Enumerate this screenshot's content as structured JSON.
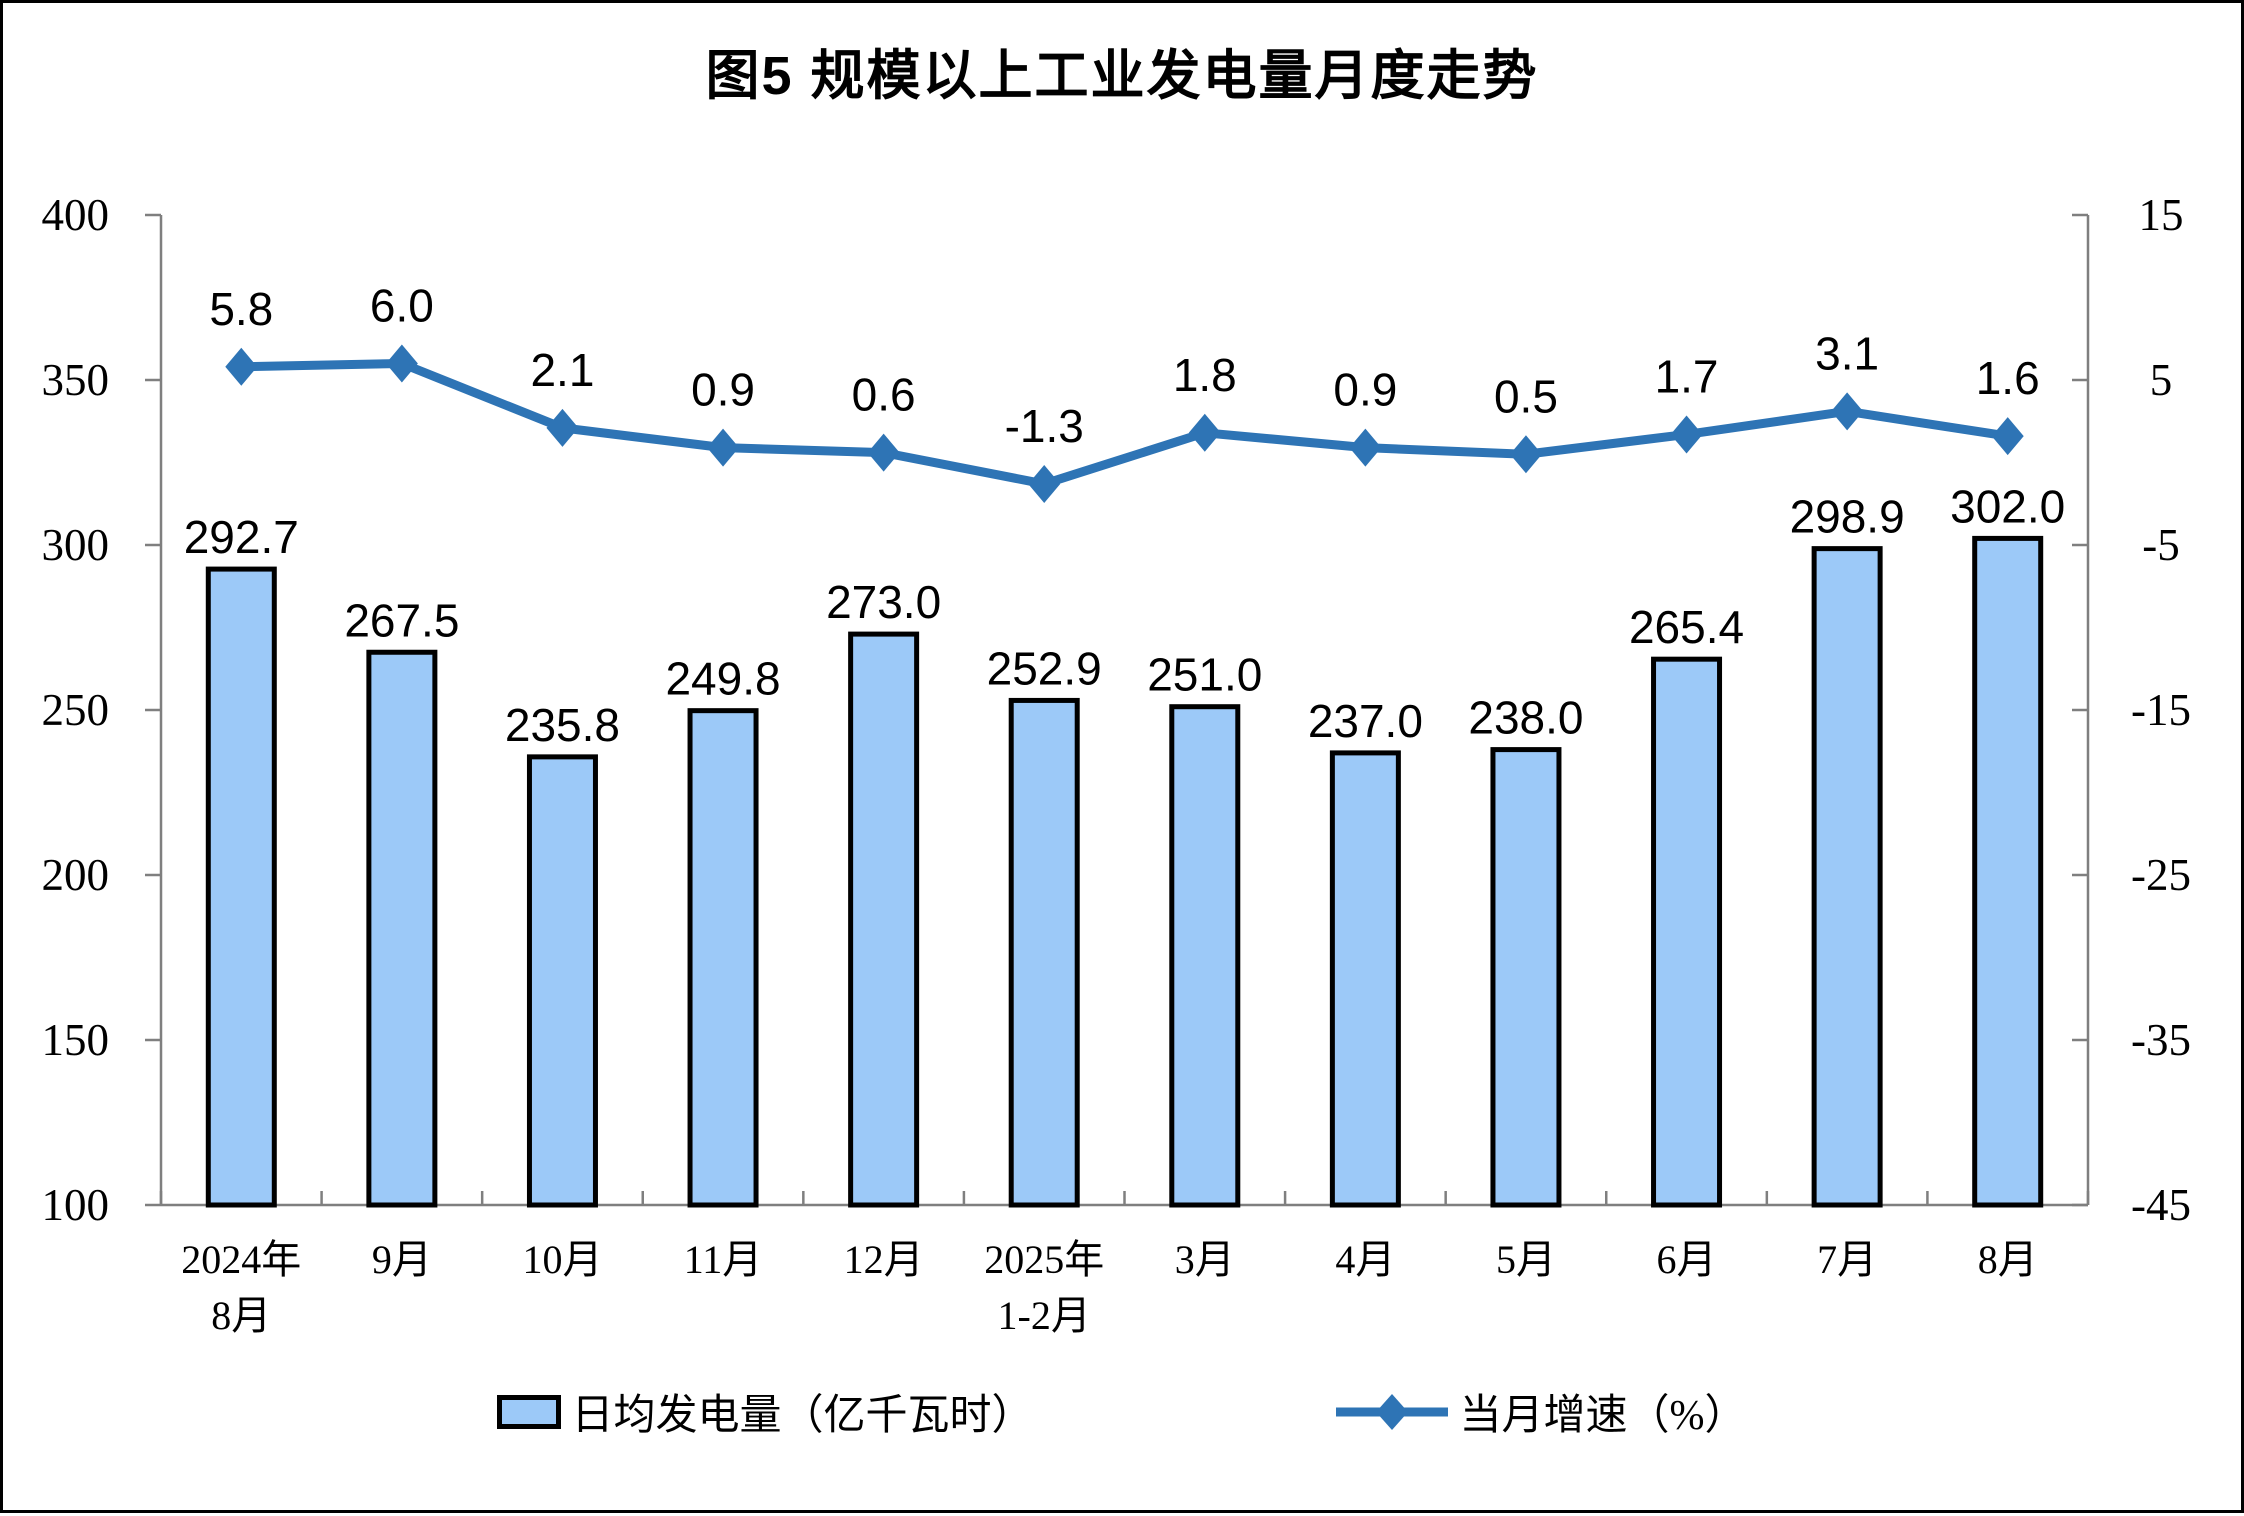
{
  "figure": {
    "title": "图5 规模以上工业发电量月度走势"
  },
  "legend": {
    "bar_label": "日均发电量（亿千瓦时）",
    "line_label": "当月增速（%）"
  },
  "colors": {
    "bar_fill": "#9CC9F8",
    "bar_border": "#000000",
    "line": "#2E74B5",
    "axis": "#7F7F7F",
    "text": "#000000"
  },
  "chart_data": {
    "type": "bar",
    "subtype": "bar-line-combo",
    "title": "图5 规模以上工业发电量月度走势",
    "categories": [
      "2024年\n8月",
      "9月",
      "10月",
      "11月",
      "12月",
      "2025年\n1-2月",
      "3月",
      "4月",
      "5月",
      "6月",
      "7月",
      "8月"
    ],
    "series": [
      {
        "name": "日均发电量（亿千瓦时）",
        "type": "bar",
        "axis": "left",
        "values": [
          292.7,
          267.5,
          235.8,
          249.8,
          273.0,
          252.9,
          251.0,
          237.0,
          238.0,
          265.4,
          298.9,
          302.0
        ]
      },
      {
        "name": "当月增速（%）",
        "type": "line",
        "axis": "right",
        "values": [
          5.8,
          6.0,
          2.1,
          0.9,
          0.6,
          -1.3,
          1.8,
          0.9,
          0.5,
          1.7,
          3.1,
          1.6
        ]
      }
    ],
    "left_axis": {
      "min": 100,
      "max": 400,
      "step": 50,
      "tick_labels": [
        "100",
        "150",
        "200",
        "250",
        "300",
        "350",
        "400"
      ]
    },
    "right_axis": {
      "min": -45,
      "max": 15,
      "step": 10,
      "tick_labels": [
        "-45",
        "-35",
        "-25",
        "-15",
        "-5",
        "5",
        "15"
      ]
    },
    "value_label_decimals": 1,
    "grid": false,
    "legend_position": "bottom"
  }
}
